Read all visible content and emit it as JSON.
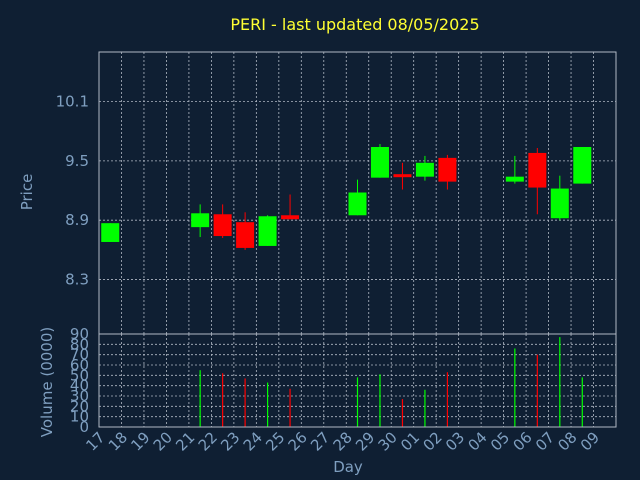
{
  "chart_data": [
    {
      "type": "candlestick",
      "title": "PERI - last updated 08/05/2025",
      "ylabel": "Price",
      "ylim": [
        7.75,
        10.6
      ],
      "yticks": [
        "10.1",
        "9.5",
        "8.9",
        "8.3"
      ],
      "categories": [
        "17",
        "18",
        "19",
        "20",
        "21",
        "22",
        "23",
        "24",
        "25",
        "26",
        "27",
        "28",
        "29",
        "30",
        "01",
        "02",
        "03",
        "04",
        "05",
        "06",
        "07",
        "08",
        "09"
      ],
      "candles": [
        {
          "day": "17",
          "open": 8.68,
          "close": 8.87,
          "high": 8.87,
          "low": 8.68
        },
        {
          "day": "21",
          "open": 8.83,
          "close": 8.97,
          "high": 9.06,
          "low": 8.73
        },
        {
          "day": "22",
          "open": 8.96,
          "close": 8.74,
          "high": 9.06,
          "low": 8.72
        },
        {
          "day": "23",
          "open": 8.88,
          "close": 8.62,
          "high": 8.98,
          "low": 8.6
        },
        {
          "day": "24",
          "open": 8.64,
          "close": 8.94,
          "high": 8.95,
          "low": 8.64
        },
        {
          "day": "25",
          "open": 8.95,
          "close": 8.91,
          "high": 9.16,
          "low": 8.91
        },
        {
          "day": "28",
          "open": 8.95,
          "close": 9.18,
          "high": 9.31,
          "low": 8.95
        },
        {
          "day": "29",
          "open": 9.33,
          "close": 9.64,
          "high": 9.67,
          "low": 9.33
        },
        {
          "day": "30",
          "open": 9.36,
          "close": 9.34,
          "high": 9.48,
          "low": 9.21
        },
        {
          "day": "01",
          "open": 9.34,
          "close": 9.48,
          "high": 9.55,
          "low": 9.3
        },
        {
          "day": "02",
          "open": 9.53,
          "close": 9.29,
          "high": 9.56,
          "low": 9.21
        },
        {
          "day": "05",
          "open": 9.29,
          "close": 9.34,
          "high": 9.55,
          "low": 9.27
        },
        {
          "day": "06",
          "open": 9.58,
          "close": 9.23,
          "high": 9.63,
          "low": 8.96
        },
        {
          "day": "07",
          "open": 8.92,
          "close": 9.22,
          "high": 9.35,
          "low": 8.9
        },
        {
          "day": "08",
          "open": 9.27,
          "close": 9.64,
          "high": 9.64,
          "low": 9.27
        }
      ]
    },
    {
      "type": "bar",
      "xlabel": "Day",
      "ylabel": "Volume (0000)",
      "ylim": [
        0,
        90
      ],
      "yticks": [
        "90",
        "80",
        "70",
        "60",
        "50",
        "40",
        "30",
        "20",
        "10",
        "0"
      ],
      "categories": [
        "17",
        "18",
        "19",
        "20",
        "21",
        "22",
        "23",
        "24",
        "25",
        "26",
        "27",
        "28",
        "29",
        "30",
        "01",
        "02",
        "03",
        "04",
        "05",
        "06",
        "07",
        "08",
        "09"
      ],
      "volumes": [
        {
          "day": "21",
          "value": 55,
          "dir": "up"
        },
        {
          "day": "22",
          "value": 52,
          "dir": "down"
        },
        {
          "day": "23",
          "value": 47,
          "dir": "down"
        },
        {
          "day": "24",
          "value": 43,
          "dir": "up"
        },
        {
          "day": "25",
          "value": 37,
          "dir": "down"
        },
        {
          "day": "28",
          "value": 48,
          "dir": "up"
        },
        {
          "day": "29",
          "value": 51,
          "dir": "up"
        },
        {
          "day": "30",
          "value": 27,
          "dir": "down"
        },
        {
          "day": "01",
          "value": 36,
          "dir": "up"
        },
        {
          "day": "02",
          "value": 53,
          "dir": "down"
        },
        {
          "day": "05",
          "value": 76,
          "dir": "up"
        },
        {
          "day": "06",
          "value": 70,
          "dir": "down"
        },
        {
          "day": "07",
          "value": 87,
          "dir": "up"
        },
        {
          "day": "08",
          "value": 48,
          "dir": "up"
        }
      ]
    }
  ],
  "colors": {
    "background": "#0f1f33",
    "title": "#ffff33",
    "axis_text": "#7f9fc0",
    "up": "#00ff00",
    "down": "#ff0000",
    "grid": "#b0b8c4"
  }
}
